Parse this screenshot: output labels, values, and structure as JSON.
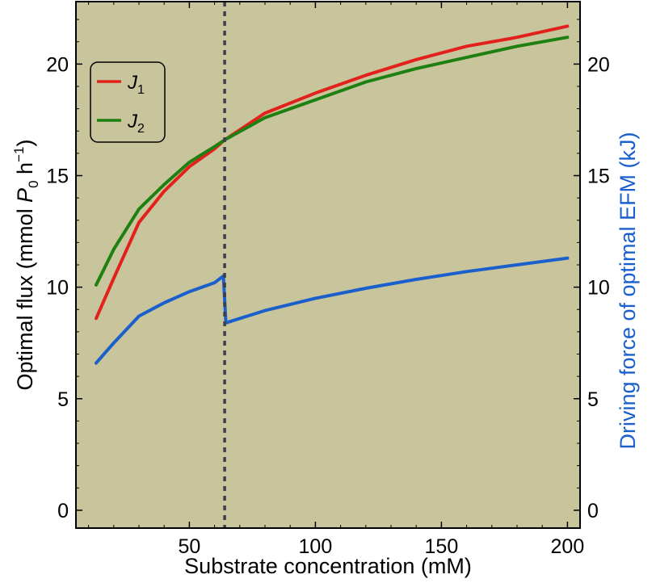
{
  "chart_data": {
    "type": "line",
    "xlabel": "Substrate concentration (mM)",
    "ylabel_left": "Optimal flux (mmol P0 h−1)",
    "ylabel_left_parts": {
      "before": "Optimal flux (mmol ",
      "var": "P",
      "sub": "0",
      "after": " h",
      "sup": "−1",
      "close": ")"
    },
    "ylabel_right": "Driving force of optimal EFM (kJ)",
    "xlim": [
      5,
      205
    ],
    "ylim_left": [
      -0.8,
      22.8
    ],
    "ylim_right": [
      -0.8,
      22.8
    ],
    "x_ticks": [
      50,
      100,
      150,
      200
    ],
    "y_ticks_left": [
      0,
      5,
      10,
      15,
      20
    ],
    "y_ticks_right": [
      0,
      5,
      10,
      15,
      20
    ],
    "vline_x": 64,
    "background_color": "#c8c49c",
    "grid": false,
    "legend_position": "top-left",
    "series": [
      {
        "name": "J1",
        "legend_var": "J",
        "legend_sub": "1",
        "color": "#e3211c",
        "axis": "left",
        "x": [
          13,
          20,
          30,
          40,
          50,
          60,
          64,
          80,
          100,
          120,
          140,
          160,
          180,
          200
        ],
        "y": [
          8.6,
          10.4,
          12.9,
          14.3,
          15.4,
          16.2,
          16.6,
          17.8,
          18.7,
          19.5,
          20.2,
          20.8,
          21.2,
          21.7
        ]
      },
      {
        "name": "J2",
        "legend_var": "J",
        "legend_sub": "2",
        "color": "#1e8010",
        "axis": "left",
        "x": [
          13,
          20,
          30,
          40,
          50,
          60,
          64,
          80,
          100,
          120,
          140,
          160,
          180,
          200
        ],
        "y": [
          10.1,
          11.7,
          13.5,
          14.6,
          15.6,
          16.3,
          16.6,
          17.6,
          18.4,
          19.2,
          19.8,
          20.3,
          20.8,
          21.2
        ]
      },
      {
        "name": "Driving force",
        "color": "#1a5fcc",
        "axis": "right",
        "x": [
          13,
          20,
          30,
          40,
          50,
          60,
          63.5,
          64.5,
          80,
          100,
          120,
          140,
          160,
          180,
          200
        ],
        "y": [
          6.6,
          7.5,
          8.7,
          9.3,
          9.8,
          10.2,
          10.5,
          8.4,
          8.95,
          9.5,
          9.95,
          10.35,
          10.7,
          11.0,
          11.3
        ]
      }
    ]
  }
}
